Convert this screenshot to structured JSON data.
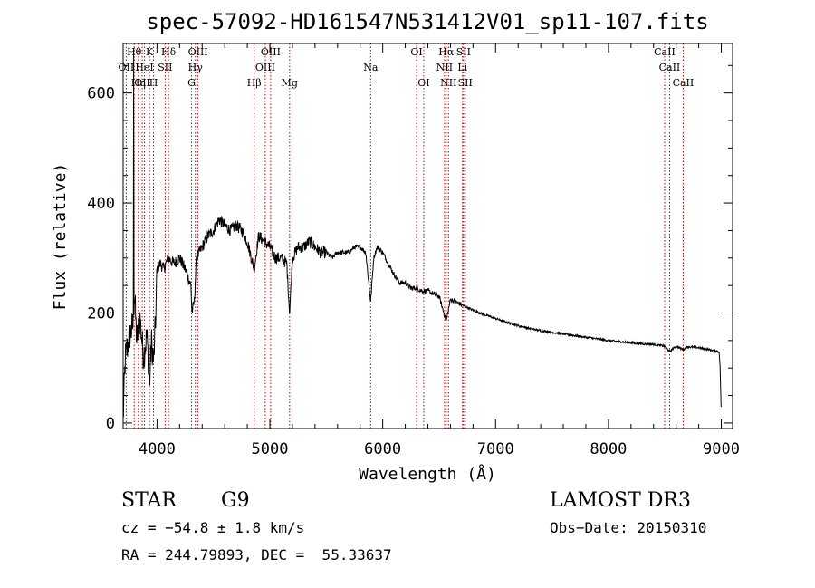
{
  "chart_data": {
    "type": "line",
    "title": "spec-57092-HD161547N531412V01_sp11-107.fits",
    "xlabel": "Wavelength (Å)",
    "ylabel": "Flux (relative)",
    "xlim": [
      3700,
      9100
    ],
    "ylim": [
      -10,
      690
    ],
    "xticks": [
      4000,
      5000,
      6000,
      7000,
      8000,
      9000
    ],
    "yticks": [
      0,
      200,
      400,
      600
    ],
    "grid": false,
    "lines": [
      {
        "wl": 3727,
        "label": "OII",
        "row": 1
      },
      {
        "wl": 3798,
        "label": "Hθ",
        "row": 0
      },
      {
        "wl": 3835,
        "label": "Hη",
        "row": 2
      },
      {
        "wl": 3869,
        "label": "OII",
        "row": 2
      },
      {
        "wl": 3889,
        "label": "HeI",
        "row": 1
      },
      {
        "wl": 3934,
        "label": "K",
        "row": 0
      },
      {
        "wl": 3969,
        "label": "H",
        "row": 2
      },
      {
        "wl": 4072,
        "label": "SII",
        "row": 1
      },
      {
        "wl": 4102,
        "label": "Hδ",
        "row": 0
      },
      {
        "wl": 4306,
        "label": "G",
        "row": 2
      },
      {
        "wl": 4340,
        "label": "Hγ",
        "row": 1
      },
      {
        "wl": 4363,
        "label": "OIII",
        "row": 0
      },
      {
        "wl": 4861,
        "label": "Hβ",
        "row": 2
      },
      {
        "wl": 4959,
        "label": "OIII",
        "row": 1
      },
      {
        "wl": 5007,
        "label": "OIII",
        "row": 0
      },
      {
        "wl": 5175,
        "label": "Mg",
        "row": 2
      },
      {
        "wl": 5893,
        "label": "Na",
        "row": 1
      },
      {
        "wl": 6300,
        "label": "OI",
        "row": 0
      },
      {
        "wl": 6363,
        "label": "OI",
        "row": 2
      },
      {
        "wl": 6548,
        "label": "NII",
        "row": 1
      },
      {
        "wl": 6563,
        "label": "Hα",
        "row": 0
      },
      {
        "wl": 6583,
        "label": "NII",
        "row": 2
      },
      {
        "wl": 6707,
        "label": "Li",
        "row": 1
      },
      {
        "wl": 6716,
        "label": "SII",
        "row": 0
      },
      {
        "wl": 6731,
        "label": "SII",
        "row": 2
      },
      {
        "wl": 8498,
        "label": "CaII",
        "row": 0
      },
      {
        "wl": 8542,
        "label": "CaII",
        "row": 1
      },
      {
        "wl": 8662,
        "label": "CaII",
        "row": 2
      }
    ],
    "spectrum_anchors": [
      [
        3700,
        0
      ],
      [
        3705,
        40
      ],
      [
        3720,
        120
      ],
      [
        3760,
        160
      ],
      [
        3790,
        180
      ],
      [
        3800,
        240
      ],
      [
        3820,
        150
      ],
      [
        3850,
        190
      ],
      [
        3880,
        120
      ],
      [
        3910,
        160
      ],
      [
        3935,
        70
      ],
      [
        3950,
        150
      ],
      [
        3970,
        110
      ],
      [
        3990,
        200
      ],
      [
        4000,
        280
      ],
      [
        4030,
        290
      ],
      [
        4060,
        280
      ],
      [
        4100,
        300
      ],
      [
        4150,
        290
      ],
      [
        4200,
        300
      ],
      [
        4250,
        280
      ],
      [
        4300,
        250
      ],
      [
        4310,
        200
      ],
      [
        4330,
        220
      ],
      [
        4350,
        300
      ],
      [
        4400,
        320
      ],
      [
        4450,
        340
      ],
      [
        4500,
        350
      ],
      [
        4550,
        370
      ],
      [
        4600,
        360
      ],
      [
        4650,
        350
      ],
      [
        4700,
        360
      ],
      [
        4750,
        350
      ],
      [
        4800,
        330
      ],
      [
        4861,
        280
      ],
      [
        4900,
        340
      ],
      [
        4950,
        330
      ],
      [
        5000,
        320
      ],
      [
        5050,
        300
      ],
      [
        5100,
        300
      ],
      [
        5150,
        290
      ],
      [
        5175,
        200
      ],
      [
        5200,
        300
      ],
      [
        5250,
        320
      ],
      [
        5300,
        320
      ],
      [
        5350,
        330
      ],
      [
        5400,
        320
      ],
      [
        5450,
        310
      ],
      [
        5500,
        310
      ],
      [
        5550,
        300
      ],
      [
        5600,
        310
      ],
      [
        5650,
        310
      ],
      [
        5700,
        310
      ],
      [
        5750,
        320
      ],
      [
        5800,
        320
      ],
      [
        5850,
        310
      ],
      [
        5893,
        220
      ],
      [
        5920,
        300
      ],
      [
        5950,
        320
      ],
      [
        6000,
        310
      ],
      [
        6050,
        290
      ],
      [
        6100,
        270
      ],
      [
        6150,
        255
      ],
      [
        6200,
        255
      ],
      [
        6250,
        245
      ],
      [
        6300,
        245
      ],
      [
        6350,
        240
      ],
      [
        6400,
        240
      ],
      [
        6450,
        235
      ],
      [
        6500,
        230
      ],
      [
        6563,
        185
      ],
      [
        6600,
        225
      ],
      [
        6650,
        220
      ],
      [
        6700,
        215
      ],
      [
        6750,
        210
      ],
      [
        6800,
        205
      ],
      [
        6900,
        197
      ],
      [
        7000,
        190
      ],
      [
        7100,
        183
      ],
      [
        7200,
        177
      ],
      [
        7300,
        172
      ],
      [
        7400,
        168
      ],
      [
        7500,
        165
      ],
      [
        7600,
        162
      ],
      [
        7700,
        159
      ],
      [
        7800,
        156
      ],
      [
        7900,
        153
      ],
      [
        8000,
        150
      ],
      [
        8100,
        148
      ],
      [
        8200,
        146
      ],
      [
        8300,
        144
      ],
      [
        8400,
        143
      ],
      [
        8498,
        140
      ],
      [
        8542,
        130
      ],
      [
        8600,
        140
      ],
      [
        8662,
        133
      ],
      [
        8700,
        139
      ],
      [
        8800,
        137
      ],
      [
        8900,
        133
      ],
      [
        8980,
        130
      ],
      [
        8990,
        100
      ],
      [
        9000,
        10
      ]
    ]
  },
  "info": {
    "object_type": "STAR",
    "subclass": "G9",
    "survey": "LAMOST DR3",
    "redshift": "cz = −54.8 ± 1.8 km/s",
    "obs_date": "Obs−Date: 20150310",
    "coords": "RA = 244.79893, DEC =  55.33637"
  }
}
